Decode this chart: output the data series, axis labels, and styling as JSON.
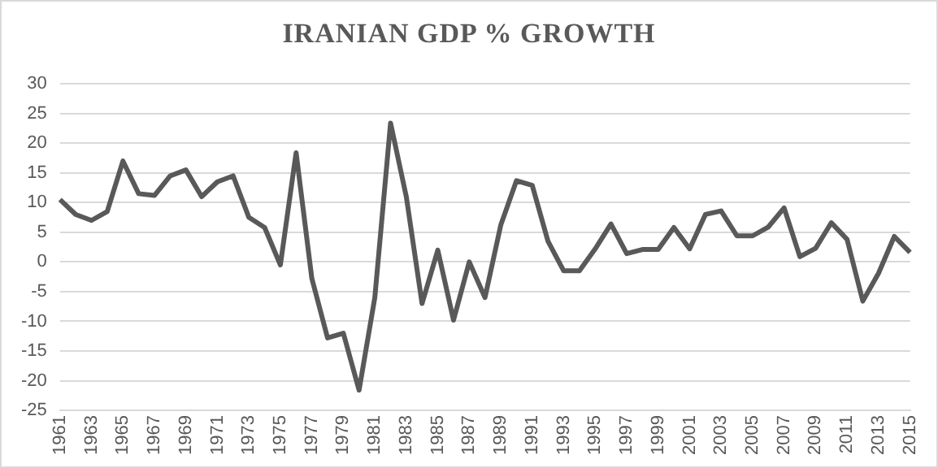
{
  "chart_data": {
    "type": "line",
    "title": "IRANIAN GDP % GROWTH",
    "categories": [
      "1961",
      null,
      "1963",
      null,
      "1965",
      null,
      "1967",
      null,
      "1969",
      null,
      "1971",
      null,
      "1973",
      null,
      "1975",
      null,
      "1977",
      null,
      "1979",
      null,
      "1981",
      null,
      "1983",
      null,
      "1985",
      null,
      "1987",
      null,
      "1989",
      null,
      "1991",
      null,
      "1993",
      null,
      "1995",
      null,
      "1997",
      null,
      "1999",
      null,
      "2001",
      null,
      "2003",
      null,
      "2005",
      null,
      "2007",
      null,
      "2009",
      null,
      "2011",
      null,
      "2013",
      null,
      "2015"
    ],
    "series": [
      {
        "color": "#595959",
        "values": [
          10.5,
          8,
          7,
          8.5,
          17,
          11.5,
          11.2,
          14.5,
          15.5,
          11,
          13.5,
          14.5,
          7.5,
          5.8,
          -0.5,
          18.4,
          -2.8,
          -12.8,
          -12,
          -21.6,
          -6,
          23.4,
          11,
          -7,
          2,
          -9.8,
          0,
          -6,
          6.2,
          13.7,
          12.9,
          3.5,
          -1.5,
          -1.5,
          2.2,
          6.4,
          1.4,
          2.1,
          2.1,
          5.8,
          2.2,
          8,
          8.6,
          4.4,
          4.4,
          5.9,
          9.1,
          0.9,
          2.3,
          6.6,
          3.8,
          -6.6,
          -1.9,
          4.3,
          1.6
        ]
      }
    ],
    "ylim": [
      -25,
      30
    ],
    "yticks": [
      -25,
      -20,
      -15,
      -10,
      -5,
      0,
      5,
      10,
      15,
      20,
      25,
      30
    ],
    "grid": "y",
    "legend": false,
    "marker": "none",
    "line_style": "solid"
  }
}
